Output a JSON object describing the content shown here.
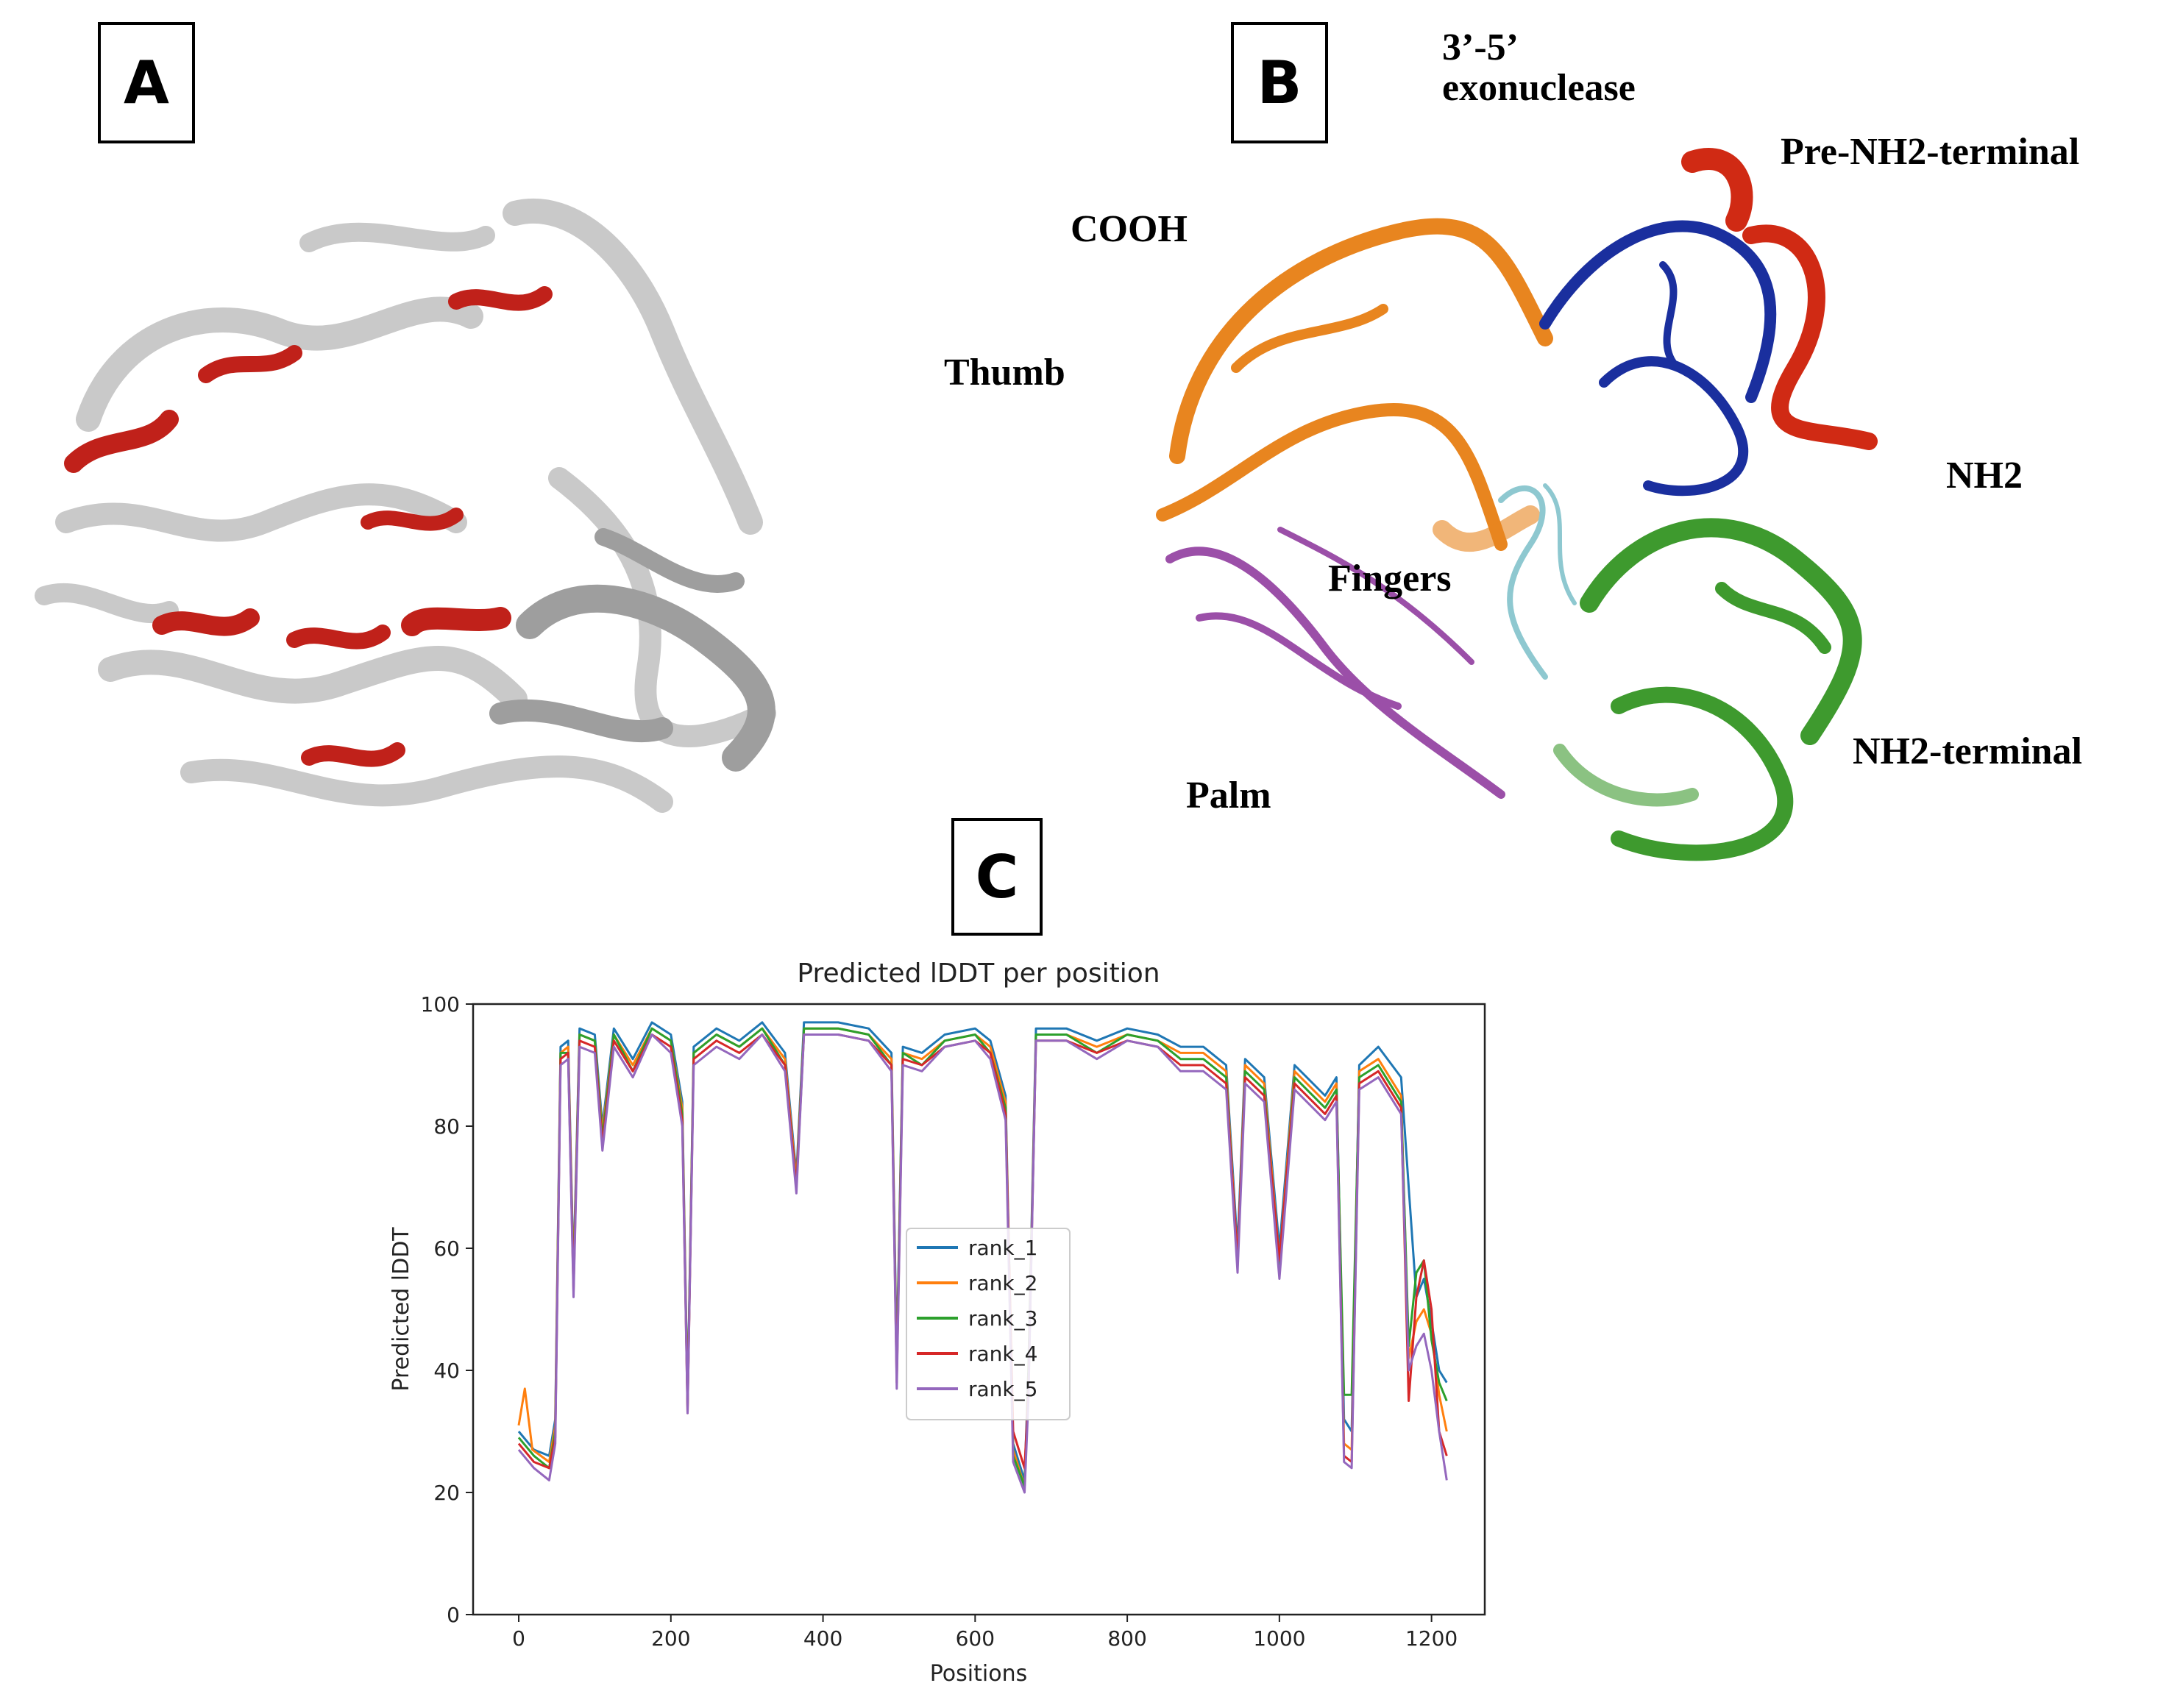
{
  "panels": {
    "a": {
      "letter": "A"
    },
    "b": {
      "letter": "B"
    },
    "c": {
      "letter": "C"
    }
  },
  "panel_b_labels": {
    "exonuclease_line1": "3’-5’",
    "exonuclease_line2": "exonuclease",
    "pre_nh2_terminal": "Pre-NH2-terminal",
    "cooh": "COOH",
    "thumb": "Thumb",
    "nh2": "NH2",
    "fingers": "Fingers",
    "nh2_terminal": "NH2-terminal",
    "palm": "Palm"
  },
  "colors": {
    "exonuclease": "#1a2f9e",
    "pre_nh2_terminal": "#d02a14",
    "thumb": "#e8851f",
    "palm": "#9b4fa8",
    "fingers": "#8ec8d0",
    "nh2_terminal": "#3e9a2e",
    "ribbon_gray": "#c9c9c9",
    "ribbon_red": "#c0211a"
  },
  "chart_data": {
    "type": "line",
    "title": "Predicted lDDT per position",
    "xlabel": "Positions",
    "ylabel": "Predicted lDDT",
    "xlim": [
      -60,
      1270
    ],
    "ylim": [
      0,
      100
    ],
    "xticks": [
      0,
      200,
      400,
      600,
      800,
      1000,
      1200
    ],
    "yticks": [
      0,
      20,
      40,
      60,
      80,
      100
    ],
    "legend_position": "center",
    "series": [
      {
        "name": "rank_1",
        "color": "#1f77b4",
        "points": [
          [
            0,
            30
          ],
          [
            20,
            27
          ],
          [
            40,
            26
          ],
          [
            48,
            32
          ],
          [
            55,
            93
          ],
          [
            65,
            94
          ],
          [
            72,
            56
          ],
          [
            80,
            96
          ],
          [
            100,
            95
          ],
          [
            110,
            80
          ],
          [
            125,
            96
          ],
          [
            150,
            91
          ],
          [
            175,
            97
          ],
          [
            200,
            95
          ],
          [
            215,
            84
          ],
          [
            222,
            35
          ],
          [
            230,
            93
          ],
          [
            260,
            96
          ],
          [
            290,
            94
          ],
          [
            320,
            97
          ],
          [
            350,
            92
          ],
          [
            365,
            72
          ],
          [
            375,
            97
          ],
          [
            420,
            97
          ],
          [
            460,
            96
          ],
          [
            490,
            92
          ],
          [
            497,
            42
          ],
          [
            505,
            93
          ],
          [
            530,
            92
          ],
          [
            560,
            95
          ],
          [
            600,
            96
          ],
          [
            620,
            94
          ],
          [
            640,
            85
          ],
          [
            650,
            28
          ],
          [
            665,
            22
          ],
          [
            670,
            40
          ],
          [
            680,
            96
          ],
          [
            720,
            96
          ],
          [
            760,
            94
          ],
          [
            800,
            96
          ],
          [
            840,
            95
          ],
          [
            870,
            93
          ],
          [
            900,
            93
          ],
          [
            930,
            90
          ],
          [
            945,
            60
          ],
          [
            955,
            91
          ],
          [
            980,
            88
          ],
          [
            1000,
            60
          ],
          [
            1020,
            90
          ],
          [
            1060,
            85
          ],
          [
            1075,
            88
          ],
          [
            1085,
            32
          ],
          [
            1095,
            30
          ],
          [
            1105,
            90
          ],
          [
            1130,
            93
          ],
          [
            1160,
            88
          ],
          [
            1170,
            70
          ],
          [
            1180,
            52
          ],
          [
            1190,
            55
          ],
          [
            1200,
            48
          ],
          [
            1210,
            40
          ],
          [
            1220,
            38
          ]
        ]
      },
      {
        "name": "rank_2",
        "color": "#ff7f0e",
        "points": [
          [
            0,
            31
          ],
          [
            8,
            37
          ],
          [
            18,
            27
          ],
          [
            40,
            25
          ],
          [
            48,
            31
          ],
          [
            55,
            92
          ],
          [
            65,
            93
          ],
          [
            72,
            55
          ],
          [
            80,
            95
          ],
          [
            100,
            94
          ],
          [
            110,
            79
          ],
          [
            125,
            95
          ],
          [
            150,
            90
          ],
          [
            175,
            96
          ],
          [
            200,
            94
          ],
          [
            215,
            83
          ],
          [
            222,
            34
          ],
          [
            230,
            92
          ],
          [
            260,
            95
          ],
          [
            290,
            93
          ],
          [
            320,
            96
          ],
          [
            350,
            91
          ],
          [
            365,
            71
          ],
          [
            375,
            96
          ],
          [
            420,
            96
          ],
          [
            460,
            95
          ],
          [
            490,
            91
          ],
          [
            497,
            40
          ],
          [
            505,
            92
          ],
          [
            530,
            91
          ],
          [
            560,
            94
          ],
          [
            600,
            95
          ],
          [
            620,
            93
          ],
          [
            640,
            84
          ],
          [
            650,
            27
          ],
          [
            665,
            21
          ],
          [
            670,
            38
          ],
          [
            680,
            95
          ],
          [
            720,
            95
          ],
          [
            760,
            93
          ],
          [
            800,
            95
          ],
          [
            840,
            94
          ],
          [
            870,
            92
          ],
          [
            900,
            92
          ],
          [
            930,
            89
          ],
          [
            945,
            58
          ],
          [
            955,
            90
          ],
          [
            980,
            87
          ],
          [
            1000,
            58
          ],
          [
            1020,
            89
          ],
          [
            1060,
            84
          ],
          [
            1075,
            87
          ],
          [
            1085,
            28
          ],
          [
            1095,
            27
          ],
          [
            1105,
            89
          ],
          [
            1130,
            91
          ],
          [
            1160,
            85
          ],
          [
            1170,
            42
          ],
          [
            1180,
            48
          ],
          [
            1190,
            50
          ],
          [
            1200,
            46
          ],
          [
            1210,
            36
          ],
          [
            1220,
            30
          ]
        ]
      },
      {
        "name": "rank_3",
        "color": "#2ca02c",
        "points": [
          [
            0,
            29
          ],
          [
            20,
            26
          ],
          [
            40,
            24
          ],
          [
            48,
            30
          ],
          [
            55,
            92
          ],
          [
            65,
            92
          ],
          [
            72,
            54
          ],
          [
            80,
            95
          ],
          [
            100,
            94
          ],
          [
            110,
            78
          ],
          [
            125,
            95
          ],
          [
            150,
            89
          ],
          [
            175,
            96
          ],
          [
            200,
            94
          ],
          [
            215,
            82
          ],
          [
            222,
            34
          ],
          [
            230,
            92
          ],
          [
            260,
            95
          ],
          [
            290,
            93
          ],
          [
            320,
            96
          ],
          [
            350,
            90
          ],
          [
            365,
            70
          ],
          [
            375,
            96
          ],
          [
            420,
            96
          ],
          [
            460,
            95
          ],
          [
            490,
            90
          ],
          [
            497,
            40
          ],
          [
            505,
            92
          ],
          [
            530,
            90
          ],
          [
            560,
            94
          ],
          [
            600,
            95
          ],
          [
            620,
            92
          ],
          [
            640,
            83
          ],
          [
            650,
            26
          ],
          [
            665,
            21
          ],
          [
            670,
            37
          ],
          [
            680,
            95
          ],
          [
            720,
            95
          ],
          [
            760,
            92
          ],
          [
            800,
            95
          ],
          [
            840,
            94
          ],
          [
            870,
            91
          ],
          [
            900,
            91
          ],
          [
            930,
            88
          ],
          [
            945,
            57
          ],
          [
            955,
            89
          ],
          [
            980,
            86
          ],
          [
            1000,
            57
          ],
          [
            1020,
            88
          ],
          [
            1060,
            83
          ],
          [
            1075,
            86
          ],
          [
            1085,
            36
          ],
          [
            1095,
            36
          ],
          [
            1105,
            88
          ],
          [
            1130,
            90
          ],
          [
            1160,
            84
          ],
          [
            1170,
            44
          ],
          [
            1180,
            56
          ],
          [
            1190,
            58
          ],
          [
            1200,
            45
          ],
          [
            1210,
            38
          ],
          [
            1220,
            35
          ]
        ]
      },
      {
        "name": "rank_4",
        "color": "#d62728",
        "points": [
          [
            0,
            28
          ],
          [
            20,
            25
          ],
          [
            40,
            24
          ],
          [
            48,
            29
          ],
          [
            55,
            91
          ],
          [
            65,
            92
          ],
          [
            72,
            53
          ],
          [
            80,
            94
          ],
          [
            100,
            93
          ],
          [
            110,
            77
          ],
          [
            125,
            94
          ],
          [
            150,
            89
          ],
          [
            175,
            95
          ],
          [
            200,
            93
          ],
          [
            215,
            81
          ],
          [
            222,
            33
          ],
          [
            230,
            91
          ],
          [
            260,
            94
          ],
          [
            290,
            92
          ],
          [
            320,
            95
          ],
          [
            350,
            90
          ],
          [
            365,
            70
          ],
          [
            375,
            95
          ],
          [
            420,
            95
          ],
          [
            460,
            94
          ],
          [
            490,
            90
          ],
          [
            497,
            38
          ],
          [
            505,
            91
          ],
          [
            530,
            90
          ],
          [
            560,
            93
          ],
          [
            600,
            94
          ],
          [
            620,
            92
          ],
          [
            640,
            82
          ],
          [
            650,
            30
          ],
          [
            665,
            24
          ],
          [
            670,
            36
          ],
          [
            680,
            94
          ],
          [
            720,
            94
          ],
          [
            760,
            92
          ],
          [
            800,
            94
          ],
          [
            840,
            93
          ],
          [
            870,
            90
          ],
          [
            900,
            90
          ],
          [
            930,
            87
          ],
          [
            945,
            58
          ],
          [
            955,
            88
          ],
          [
            980,
            85
          ],
          [
            1000,
            58
          ],
          [
            1020,
            87
          ],
          [
            1060,
            82
          ],
          [
            1075,
            85
          ],
          [
            1085,
            26
          ],
          [
            1095,
            25
          ],
          [
            1105,
            87
          ],
          [
            1130,
            89
          ],
          [
            1160,
            83
          ],
          [
            1170,
            35
          ],
          [
            1180,
            52
          ],
          [
            1190,
            58
          ],
          [
            1200,
            50
          ],
          [
            1210,
            30
          ],
          [
            1220,
            26
          ]
        ]
      },
      {
        "name": "rank_5",
        "color": "#9467bd",
        "points": [
          [
            0,
            27
          ],
          [
            20,
            24
          ],
          [
            40,
            22
          ],
          [
            48,
            28
          ],
          [
            55,
            90
          ],
          [
            65,
            91
          ],
          [
            72,
            52
          ],
          [
            80,
            93
          ],
          [
            100,
            92
          ],
          [
            110,
            76
          ],
          [
            125,
            93
          ],
          [
            150,
            88
          ],
          [
            175,
            95
          ],
          [
            200,
            92
          ],
          [
            215,
            80
          ],
          [
            222,
            33
          ],
          [
            230,
            90
          ],
          [
            260,
            93
          ],
          [
            290,
            91
          ],
          [
            320,
            95
          ],
          [
            350,
            89
          ],
          [
            365,
            69
          ],
          [
            375,
            95
          ],
          [
            420,
            95
          ],
          [
            460,
            94
          ],
          [
            490,
            89
          ],
          [
            497,
            37
          ],
          [
            505,
            90
          ],
          [
            530,
            89
          ],
          [
            560,
            93
          ],
          [
            600,
            94
          ],
          [
            620,
            91
          ],
          [
            640,
            81
          ],
          [
            650,
            25
          ],
          [
            665,
            20
          ],
          [
            670,
            35
          ],
          [
            680,
            94
          ],
          [
            720,
            94
          ],
          [
            760,
            91
          ],
          [
            800,
            94
          ],
          [
            840,
            93
          ],
          [
            870,
            89
          ],
          [
            900,
            89
          ],
          [
            930,
            86
          ],
          [
            945,
            56
          ],
          [
            955,
            87
          ],
          [
            980,
            84
          ],
          [
            1000,
            55
          ],
          [
            1020,
            86
          ],
          [
            1060,
            81
          ],
          [
            1075,
            84
          ],
          [
            1085,
            25
          ],
          [
            1095,
            24
          ],
          [
            1105,
            86
          ],
          [
            1130,
            88
          ],
          [
            1160,
            82
          ],
          [
            1170,
            40
          ],
          [
            1180,
            44
          ],
          [
            1190,
            46
          ],
          [
            1200,
            40
          ],
          [
            1210,
            30
          ],
          [
            1220,
            22
          ]
        ]
      }
    ]
  }
}
